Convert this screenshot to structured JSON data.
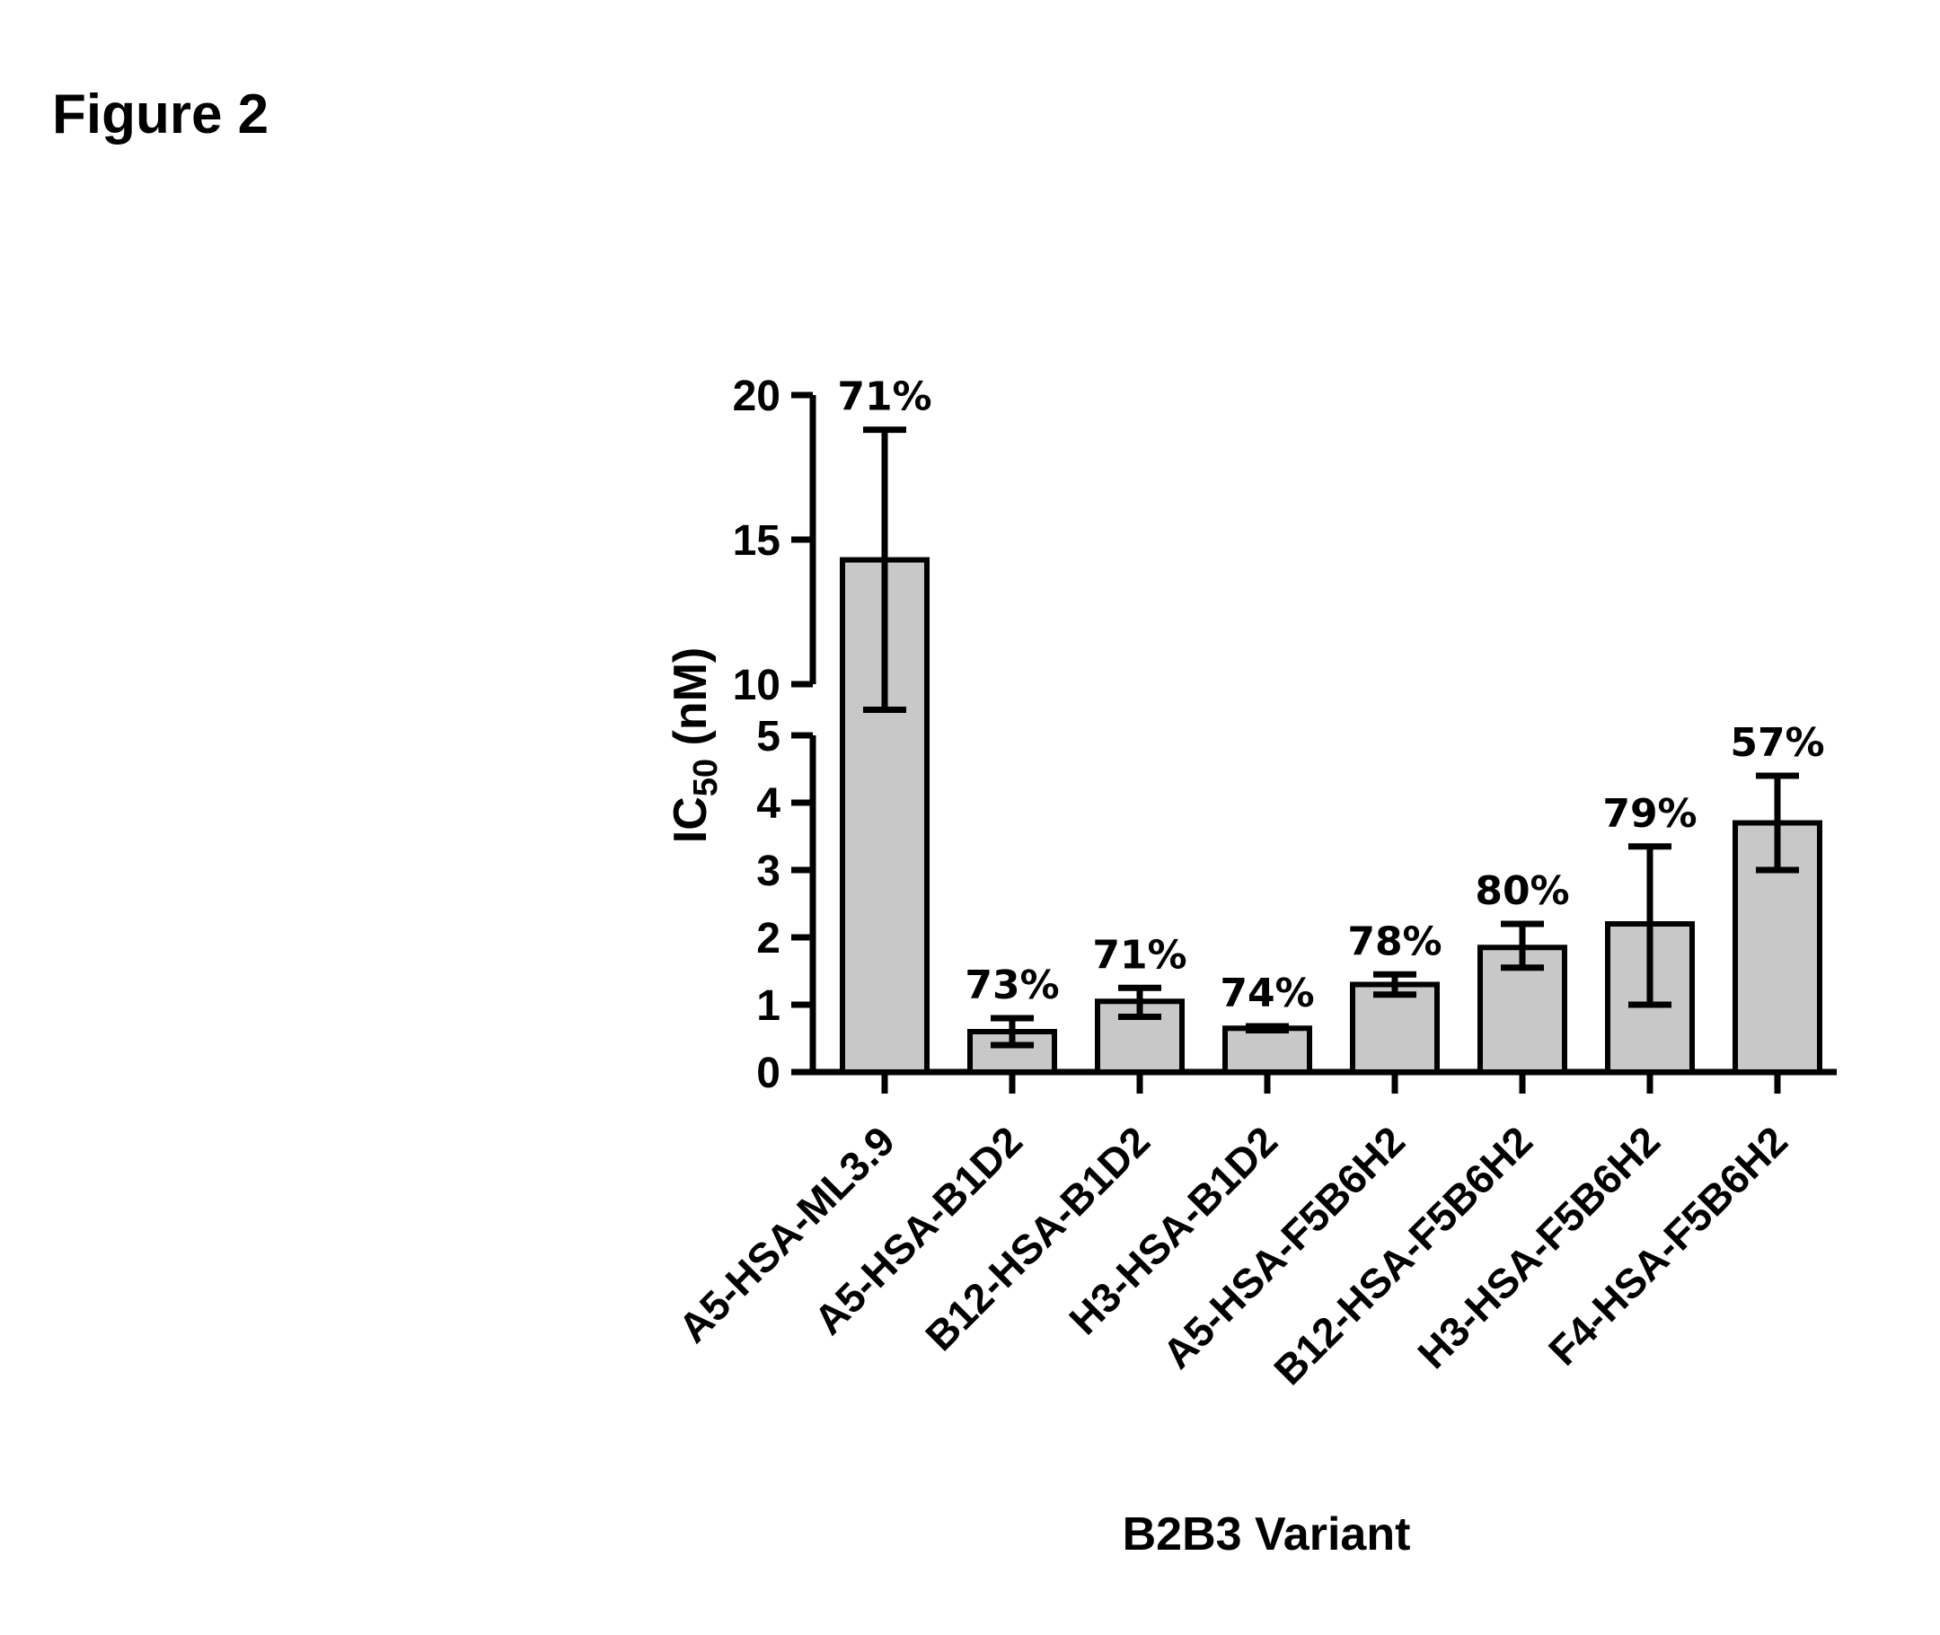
{
  "figure": {
    "title": "Figure 2"
  },
  "chart_data": {
    "type": "bar",
    "title": "",
    "xlabel": "B2B3 Variant",
    "ylabel": {
      "main": "IC",
      "subscript": "50",
      "unit": " (nM)"
    },
    "axis_break": true,
    "y_segments": [
      {
        "range": [
          0,
          5
        ],
        "ticks": [
          "0",
          "1",
          "2",
          "3",
          "4",
          "5"
        ]
      },
      {
        "range": [
          10,
          20
        ],
        "ticks": [
          "10",
          "15",
          "20"
        ]
      }
    ],
    "categories": [
      "A5-HSA-ML3.9",
      "A5-HSA-B1D2",
      "B12-HSA-B1D2",
      "H3-HSA-B1D2",
      "A5-HSA-F5B6H2",
      "B12-HSA-F5B6H2",
      "H3-HSA-F5B6H2",
      "F4-HSA-F5B6H2"
    ],
    "values": [
      14.3,
      0.6,
      1.05,
      0.65,
      1.3,
      1.85,
      2.2,
      3.7
    ],
    "error_low": [
      9.2,
      0.4,
      0.82,
      0.62,
      1.15,
      1.55,
      1.0,
      3.0
    ],
    "error_high": [
      18.8,
      0.8,
      1.25,
      0.68,
      1.45,
      2.2,
      3.35,
      4.4
    ],
    "bar_labels": [
      "71%",
      "73%",
      "71%",
      "74%",
      "78%",
      "80%",
      "79%",
      "57%"
    ],
    "bar_color": "#c8c8c8",
    "grid": false,
    "legend": "none"
  }
}
